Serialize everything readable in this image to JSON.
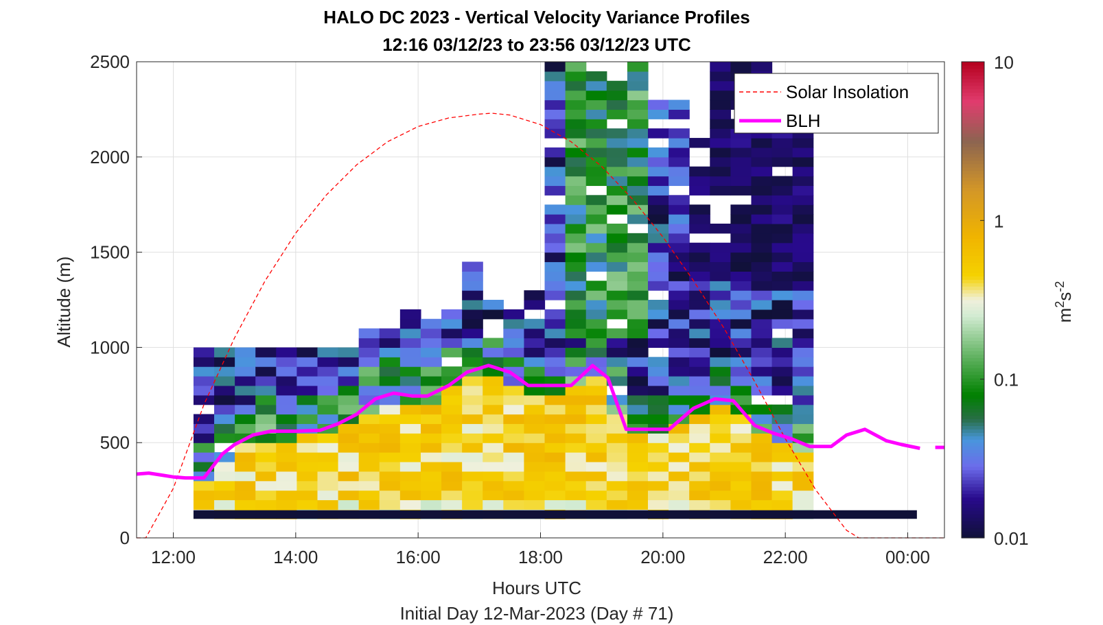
{
  "chart_data": {
    "type": "heatmap",
    "title": "HALO DC 2023 - Vertical Velocity Variance Profiles",
    "subtitle": "12:16 03/12/23 to 23:56 03/12/23  UTC",
    "xlabel": "Hours UTC",
    "footer": "Initial Day 12-Mar-2023 (Day # 71)",
    "ylabel": "Altitude (m)",
    "colorbar_label_base": "m",
    "colorbar_label_sup1": "2",
    "colorbar_label_mid": "s",
    "colorbar_label_sup2": "-2",
    "xlim": [
      11.4,
      24.6
    ],
    "ylim": [
      0,
      2500
    ],
    "x_ticks": [
      12,
      14,
      16,
      18,
      20,
      22,
      24
    ],
    "x_tick_labels": [
      "12:00",
      "14:00",
      "16:00",
      "18:00",
      "20:00",
      "22:00",
      "00:00"
    ],
    "y_ticks": [
      0,
      500,
      1000,
      1500,
      2000,
      2500
    ],
    "y_tick_labels": [
      "0",
      "500",
      "1000",
      "1500",
      "2000",
      "2500"
    ],
    "color_scale": "log",
    "clim": [
      0.01,
      10
    ],
    "colorbar_ticks": [
      0.01,
      0.1,
      1,
      10
    ],
    "colorbar_tick_labels": [
      "0.01",
      "0.1",
      "1",
      "10"
    ],
    "grid": true,
    "legend_position": "top-right",
    "series": [
      {
        "name": "Solar Insolation",
        "style": "dashed",
        "color": "#ff0000",
        "x": [
          11.4,
          11.55,
          12.0,
          12.5,
          13.0,
          13.5,
          14.0,
          14.5,
          15.0,
          15.5,
          16.0,
          16.5,
          17.0,
          17.2,
          17.5,
          18.0,
          18.5,
          19.0,
          19.5,
          20.0,
          20.5,
          21.0,
          21.5,
          22.0,
          22.5,
          23.0,
          23.2,
          23.5,
          24.0,
          24.6
        ],
        "y": [
          0,
          0,
          260,
          700,
          1050,
          1350,
          1600,
          1800,
          1960,
          2080,
          2160,
          2205,
          2225,
          2230,
          2220,
          2170,
          2080,
          1950,
          1780,
          1580,
          1350,
          1100,
          820,
          520,
          250,
          40,
          0,
          0,
          0,
          0
        ]
      },
      {
        "name": "BLH",
        "style": "solid",
        "color": "#ff00ff",
        "x": [
          11.4,
          11.6,
          11.8,
          12.0,
          12.2,
          12.5,
          12.8,
          13.0,
          13.3,
          13.6,
          14.0,
          14.4,
          14.7,
          15.0,
          15.3,
          15.6,
          15.9,
          16.15,
          16.5,
          16.8,
          17.15,
          17.5,
          17.8,
          18.1,
          18.5,
          18.85,
          19.1,
          19.4,
          19.75,
          20.1,
          20.5,
          20.85,
          21.15,
          21.5,
          21.8,
          22.1,
          22.4,
          22.75,
          23.0,
          23.3,
          23.65,
          23.9,
          24.2
        ],
        "y": [
          335,
          340,
          330,
          320,
          315,
          315,
          440,
          490,
          540,
          560,
          560,
          565,
          600,
          650,
          730,
          760,
          745,
          745,
          800,
          870,
          905,
          870,
          800,
          800,
          800,
          905,
          840,
          570,
          570,
          570,
          680,
          730,
          720,
          590,
          550,
          520,
          480,
          480,
          540,
          570,
          510,
          490,
          470
        ]
      },
      {
        "name": "",
        "style": "solid",
        "color": "#ff00ff",
        "x": [
          24.45,
          24.6
        ],
        "y": [
          475,
          475
        ]
      }
    ],
    "heatmap_grid": {
      "x0_hour": 12.33,
      "dx_hour": 0.3375,
      "y0_m": 100,
      "dy_m": 50,
      "legend": "values are log10 of variance (m2 s-2)",
      "levels_per_row_by_profile": "see rows"
    }
  },
  "legend": {
    "items": [
      "Solar Insolation",
      "BLH"
    ]
  }
}
